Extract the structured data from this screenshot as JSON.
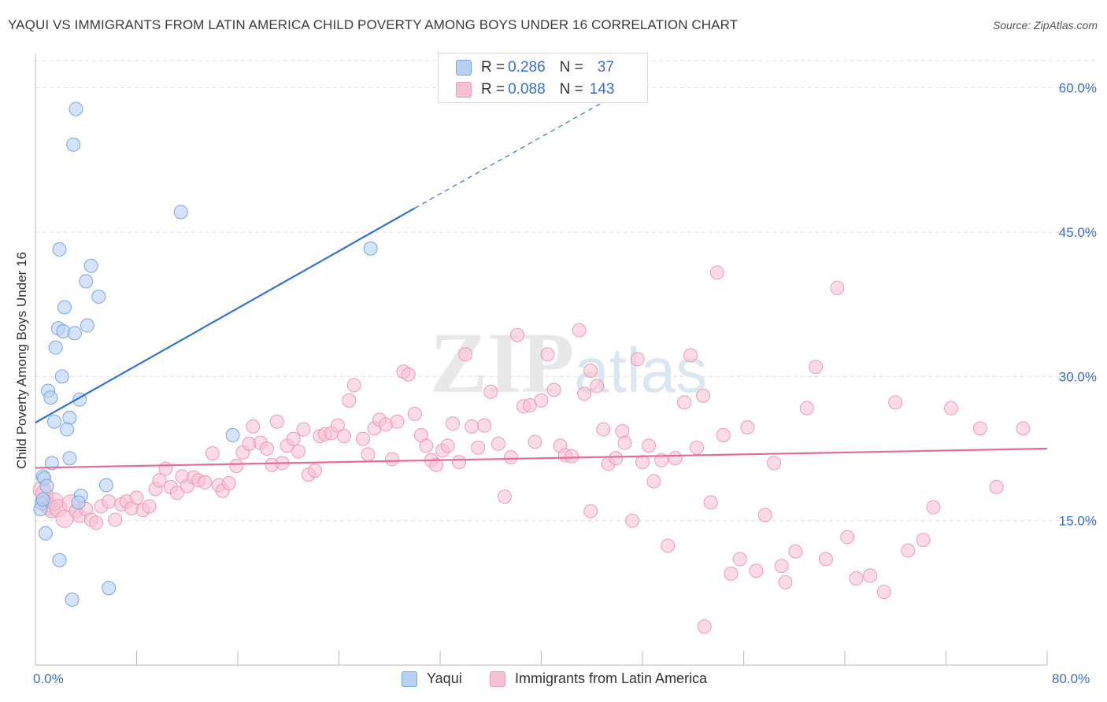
{
  "title": "YAQUI VS IMMIGRANTS FROM LATIN AMERICA CHILD POVERTY AMONG BOYS UNDER 16 CORRELATION CHART",
  "source": "Source: ZipAtlas.com",
  "watermark": "ZIPatlas",
  "legend_top": {
    "rows": [
      {
        "r_label": "R = ",
        "r_value": "0.286",
        "n_label": "N = ",
        "n_value": "37"
      },
      {
        "r_label": "R = ",
        "r_value": "0.088",
        "n_label": "N = ",
        "n_value": "143"
      }
    ]
  },
  "colors": {
    "yaqui_fill": "#b8d1f3",
    "yaqui_stroke": "#7aa6e0",
    "yaqui_line": "#2f74d0",
    "latam_fill": "#f7c0d2",
    "latam_stroke": "#ec9ab6",
    "latam_line": "#e56b98",
    "tick_label": "#3a6fc7",
    "grid": "#dddddd"
  },
  "chart_data": {
    "type": "scatter",
    "xlabel": "",
    "ylabel": "Child Poverty Among Boys Under 16",
    "xlim": [
      0,
      80
    ],
    "ylim": [
      0,
      63
    ],
    "x_tick_labels": [
      "0.0%",
      "80.0%"
    ],
    "y_ticks": [
      15,
      30,
      45,
      60
    ],
    "y_tick_labels": [
      "15.0%",
      "30.0%",
      "45.0%",
      "60.0%"
    ],
    "grid": "horizontal dashed",
    "legend": "top-center and bottom",
    "series": [
      {
        "name": "Yaqui",
        "R": 0.286,
        "N": 37,
        "trend": {
          "x0": 0,
          "y0": 25.2,
          "x1": 30,
          "y1": 47.5,
          "dashed_to_x": 45,
          "dashed_to_y": 58.6
        },
        "points": [
          [
            3.2,
            57.8
          ],
          [
            3.0,
            54.1
          ],
          [
            11.5,
            47.1
          ],
          [
            1.9,
            43.2
          ],
          [
            26.5,
            43.3
          ],
          [
            4.4,
            41.5
          ],
          [
            4.0,
            39.9
          ],
          [
            5.0,
            38.3
          ],
          [
            2.3,
            37.2
          ],
          [
            1.8,
            35.0
          ],
          [
            2.2,
            34.7
          ],
          [
            4.1,
            35.3
          ],
          [
            3.1,
            34.5
          ],
          [
            1.6,
            33.0
          ],
          [
            2.1,
            30.0
          ],
          [
            1.0,
            28.5
          ],
          [
            1.2,
            27.8
          ],
          [
            3.5,
            27.6
          ],
          [
            2.7,
            25.7
          ],
          [
            1.5,
            25.3
          ],
          [
            2.5,
            24.5
          ],
          [
            15.6,
            23.9
          ],
          [
            2.7,
            21.5
          ],
          [
            1.3,
            21.0
          ],
          [
            0.6,
            19.6
          ],
          [
            0.7,
            19.4
          ],
          [
            0.9,
            18.6
          ],
          [
            5.6,
            18.7
          ],
          [
            3.6,
            17.6
          ],
          [
            3.4,
            16.9
          ],
          [
            0.5,
            16.8
          ],
          [
            0.4,
            16.2
          ],
          [
            0.8,
            13.7
          ],
          [
            1.9,
            10.9
          ],
          [
            5.8,
            8.0
          ],
          [
            2.9,
            6.8
          ],
          [
            0.6,
            17.2
          ]
        ]
      },
      {
        "name": "Immigrants from Latin America",
        "R": 0.088,
        "N": 143,
        "trend": {
          "x0": 0,
          "y0": 20.5,
          "x1": 80,
          "y1": 22.5
        },
        "points": [
          [
            0.5,
            18.2
          ],
          [
            0.7,
            17.8
          ],
          [
            0.9,
            16.8
          ],
          [
            1.1,
            16.5
          ],
          [
            1.3,
            16.2
          ],
          [
            1.5,
            17.0
          ],
          [
            1.8,
            16.3
          ],
          [
            2.3,
            15.2
          ],
          [
            2.8,
            16.8
          ],
          [
            3.2,
            16.0
          ],
          [
            3.5,
            15.5
          ],
          [
            4.0,
            16.2
          ],
          [
            4.4,
            15.1
          ],
          [
            4.8,
            14.8
          ],
          [
            5.2,
            16.5
          ],
          [
            5.8,
            17.0
          ],
          [
            6.3,
            15.1
          ],
          [
            6.8,
            16.7
          ],
          [
            7.2,
            17.0
          ],
          [
            7.6,
            16.3
          ],
          [
            8.0,
            17.4
          ],
          [
            8.5,
            16.1
          ],
          [
            9.0,
            16.5
          ],
          [
            9.5,
            18.3
          ],
          [
            9.8,
            19.2
          ],
          [
            10.3,
            20.4
          ],
          [
            10.7,
            18.5
          ],
          [
            11.2,
            17.9
          ],
          [
            11.6,
            19.6
          ],
          [
            12.0,
            18.6
          ],
          [
            12.5,
            19.5
          ],
          [
            12.9,
            19.2
          ],
          [
            13.4,
            19.0
          ],
          [
            14.0,
            22.0
          ],
          [
            14.5,
            18.7
          ],
          [
            14.8,
            18.1
          ],
          [
            15.3,
            18.9
          ],
          [
            15.9,
            20.7
          ],
          [
            16.4,
            22.1
          ],
          [
            16.9,
            23.0
          ],
          [
            17.2,
            24.8
          ],
          [
            17.8,
            23.1
          ],
          [
            18.3,
            22.5
          ],
          [
            18.7,
            20.8
          ],
          [
            19.1,
            25.3
          ],
          [
            19.5,
            21.0
          ],
          [
            19.9,
            22.8
          ],
          [
            20.4,
            23.5
          ],
          [
            20.8,
            22.2
          ],
          [
            21.2,
            24.5
          ],
          [
            21.6,
            19.8
          ],
          [
            22.1,
            20.2
          ],
          [
            22.5,
            23.8
          ],
          [
            22.9,
            24.0
          ],
          [
            23.4,
            24.1
          ],
          [
            23.9,
            24.9
          ],
          [
            24.4,
            23.8
          ],
          [
            24.8,
            27.5
          ],
          [
            25.2,
            29.1
          ],
          [
            25.9,
            23.5
          ],
          [
            26.3,
            21.9
          ],
          [
            26.8,
            24.6
          ],
          [
            27.2,
            25.5
          ],
          [
            27.7,
            25.0
          ],
          [
            28.2,
            21.4
          ],
          [
            28.6,
            25.3
          ],
          [
            29.1,
            30.5
          ],
          [
            29.5,
            30.2
          ],
          [
            30.0,
            26.1
          ],
          [
            30.5,
            23.9
          ],
          [
            30.9,
            22.8
          ],
          [
            31.3,
            21.3
          ],
          [
            31.7,
            20.8
          ],
          [
            32.2,
            22.3
          ],
          [
            32.6,
            22.8
          ],
          [
            33.0,
            25.1
          ],
          [
            33.5,
            21.1
          ],
          [
            34.0,
            32.3
          ],
          [
            34.5,
            24.8
          ],
          [
            35.0,
            22.6
          ],
          [
            35.5,
            24.9
          ],
          [
            36.0,
            28.4
          ],
          [
            36.6,
            23.0
          ],
          [
            37.1,
            17.5
          ],
          [
            37.6,
            21.6
          ],
          [
            38.1,
            34.3
          ],
          [
            38.6,
            26.9
          ],
          [
            39.1,
            27.0
          ],
          [
            39.5,
            23.2
          ],
          [
            40.0,
            27.5
          ],
          [
            40.5,
            32.3
          ],
          [
            41.0,
            28.6
          ],
          [
            41.5,
            22.8
          ],
          [
            41.9,
            21.8
          ],
          [
            42.4,
            21.7
          ],
          [
            43.0,
            34.8
          ],
          [
            43.4,
            28.2
          ],
          [
            43.9,
            30.6
          ],
          [
            44.4,
            29.0
          ],
          [
            44.9,
            24.5
          ],
          [
            45.3,
            20.9
          ],
          [
            45.9,
            21.5
          ],
          [
            46.4,
            24.3
          ],
          [
            46.6,
            23.1
          ],
          [
            47.2,
            15.0
          ],
          [
            47.6,
            31.8
          ],
          [
            48.0,
            21.1
          ],
          [
            48.5,
            22.8
          ],
          [
            48.9,
            19.1
          ],
          [
            49.5,
            21.3
          ],
          [
            50.0,
            12.4
          ],
          [
            50.6,
            21.5
          ],
          [
            51.3,
            27.3
          ],
          [
            51.8,
            32.2
          ],
          [
            52.3,
            22.6
          ],
          [
            52.8,
            28.0
          ],
          [
            53.4,
            16.9
          ],
          [
            53.9,
            40.8
          ],
          [
            54.4,
            23.9
          ],
          [
            55.0,
            9.5
          ],
          [
            55.7,
            11.0
          ],
          [
            56.3,
            24.7
          ],
          [
            57.0,
            9.8
          ],
          [
            57.7,
            15.6
          ],
          [
            58.4,
            21.0
          ],
          [
            59.3,
            8.6
          ],
          [
            60.1,
            11.8
          ],
          [
            61.0,
            26.7
          ],
          [
            61.7,
            31.0
          ],
          [
            62.5,
            11.0
          ],
          [
            63.4,
            39.2
          ],
          [
            64.2,
            13.3
          ],
          [
            64.9,
            9.0
          ],
          [
            66.0,
            9.3
          ],
          [
            67.1,
            7.6
          ],
          [
            68.0,
            27.3
          ],
          [
            69.0,
            11.9
          ],
          [
            70.2,
            13.0
          ],
          [
            71.0,
            16.4
          ],
          [
            72.4,
            26.7
          ],
          [
            74.7,
            24.6
          ],
          [
            76.0,
            18.5
          ],
          [
            78.1,
            24.6
          ],
          [
            43.9,
            16.0
          ],
          [
            59.0,
            10.3
          ],
          [
            52.9,
            4.0
          ]
        ]
      }
    ]
  },
  "bottom_legend": [
    {
      "label": "Yaqui"
    },
    {
      "label": "Immigrants from Latin America"
    }
  ]
}
